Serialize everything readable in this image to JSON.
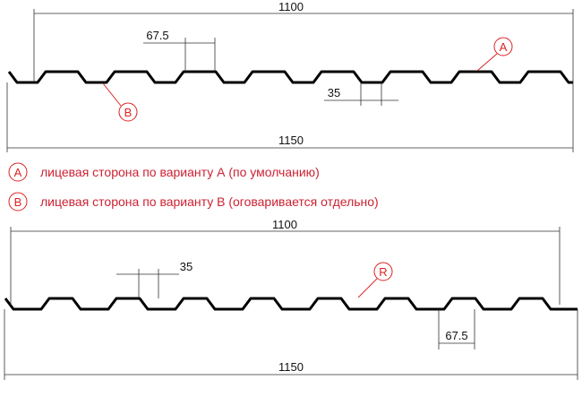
{
  "profile_1": {
    "dim_width": "1100",
    "dim_pitch": "67.5",
    "dim_top": "35",
    "dim_total": "1150",
    "marker_a": "A",
    "marker_b": "B"
  },
  "legend": [
    {
      "marker": "A",
      "text": "лицевая сторона по варианту А (по умолчанию)"
    },
    {
      "marker": "B",
      "text": "лицевая сторона по варианту В (оговаривается отдельно)"
    }
  ],
  "profile_2": {
    "dim_width": "1100",
    "dim_top": "35",
    "marker_r": "R",
    "dim_pitch": "67.5",
    "dim_total": "1150"
  }
}
